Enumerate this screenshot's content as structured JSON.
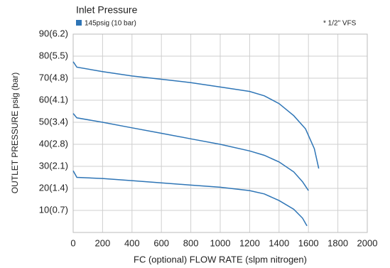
{
  "chart_data": {
    "type": "line",
    "title": "Inlet Pressure",
    "annotation": "* 1/2\"   VFS",
    "x_label": "FC (optional)  FLOW RATE (slpm nitrogen)",
    "y_label": "OUTLET PRESSURE psig (bar)",
    "xlim": [
      0,
      2000
    ],
    "ylim": [
      0,
      90
    ],
    "xticks": [
      0,
      200,
      400,
      600,
      800,
      1000,
      1200,
      1400,
      1600,
      1800,
      2000
    ],
    "yticks": [
      {
        "value": 10,
        "label": "10(0.7)"
      },
      {
        "value": 20,
        "label": "20(1.4)"
      },
      {
        "value": 30,
        "label": "30(2.1)"
      },
      {
        "value": 40,
        "label": "40(2.8)"
      },
      {
        "value": 50,
        "label": "50(3.4)"
      },
      {
        "value": 60,
        "label": "60(4.1)"
      },
      {
        "value": 70,
        "label": "70(4.8)"
      },
      {
        "value": 80,
        "label": "80(5.5)"
      },
      {
        "value": 90,
        "label": "90(6.2)"
      }
    ],
    "grid": true,
    "series": [
      {
        "name": "145psig (10 bar)",
        "color": "#2e75b6",
        "x": [
          0,
          25,
          200,
          400,
          600,
          800,
          1000,
          1200,
          1300,
          1400,
          1500,
          1580,
          1640,
          1670
        ],
        "values": [
          77.5,
          75,
          73,
          71,
          69.5,
          68,
          66,
          64,
          62,
          58.5,
          53,
          47,
          38,
          29
        ]
      },
      {
        "color": "#2e75b6",
        "x": [
          0,
          25,
          200,
          400,
          600,
          800,
          1000,
          1200,
          1300,
          1400,
          1500,
          1560,
          1600
        ],
        "values": [
          54,
          52,
          50,
          47.5,
          45,
          42.5,
          40,
          37,
          35,
          32,
          27.5,
          23,
          19
        ]
      },
      {
        "color": "#2e75b6",
        "x": [
          0,
          25,
          200,
          400,
          600,
          800,
          1000,
          1200,
          1300,
          1400,
          1500,
          1560,
          1590
        ],
        "values": [
          28,
          25,
          24.5,
          23.5,
          22.5,
          21.5,
          20.5,
          19,
          17.5,
          14.5,
          10.5,
          6.5,
          3
        ]
      }
    ]
  }
}
